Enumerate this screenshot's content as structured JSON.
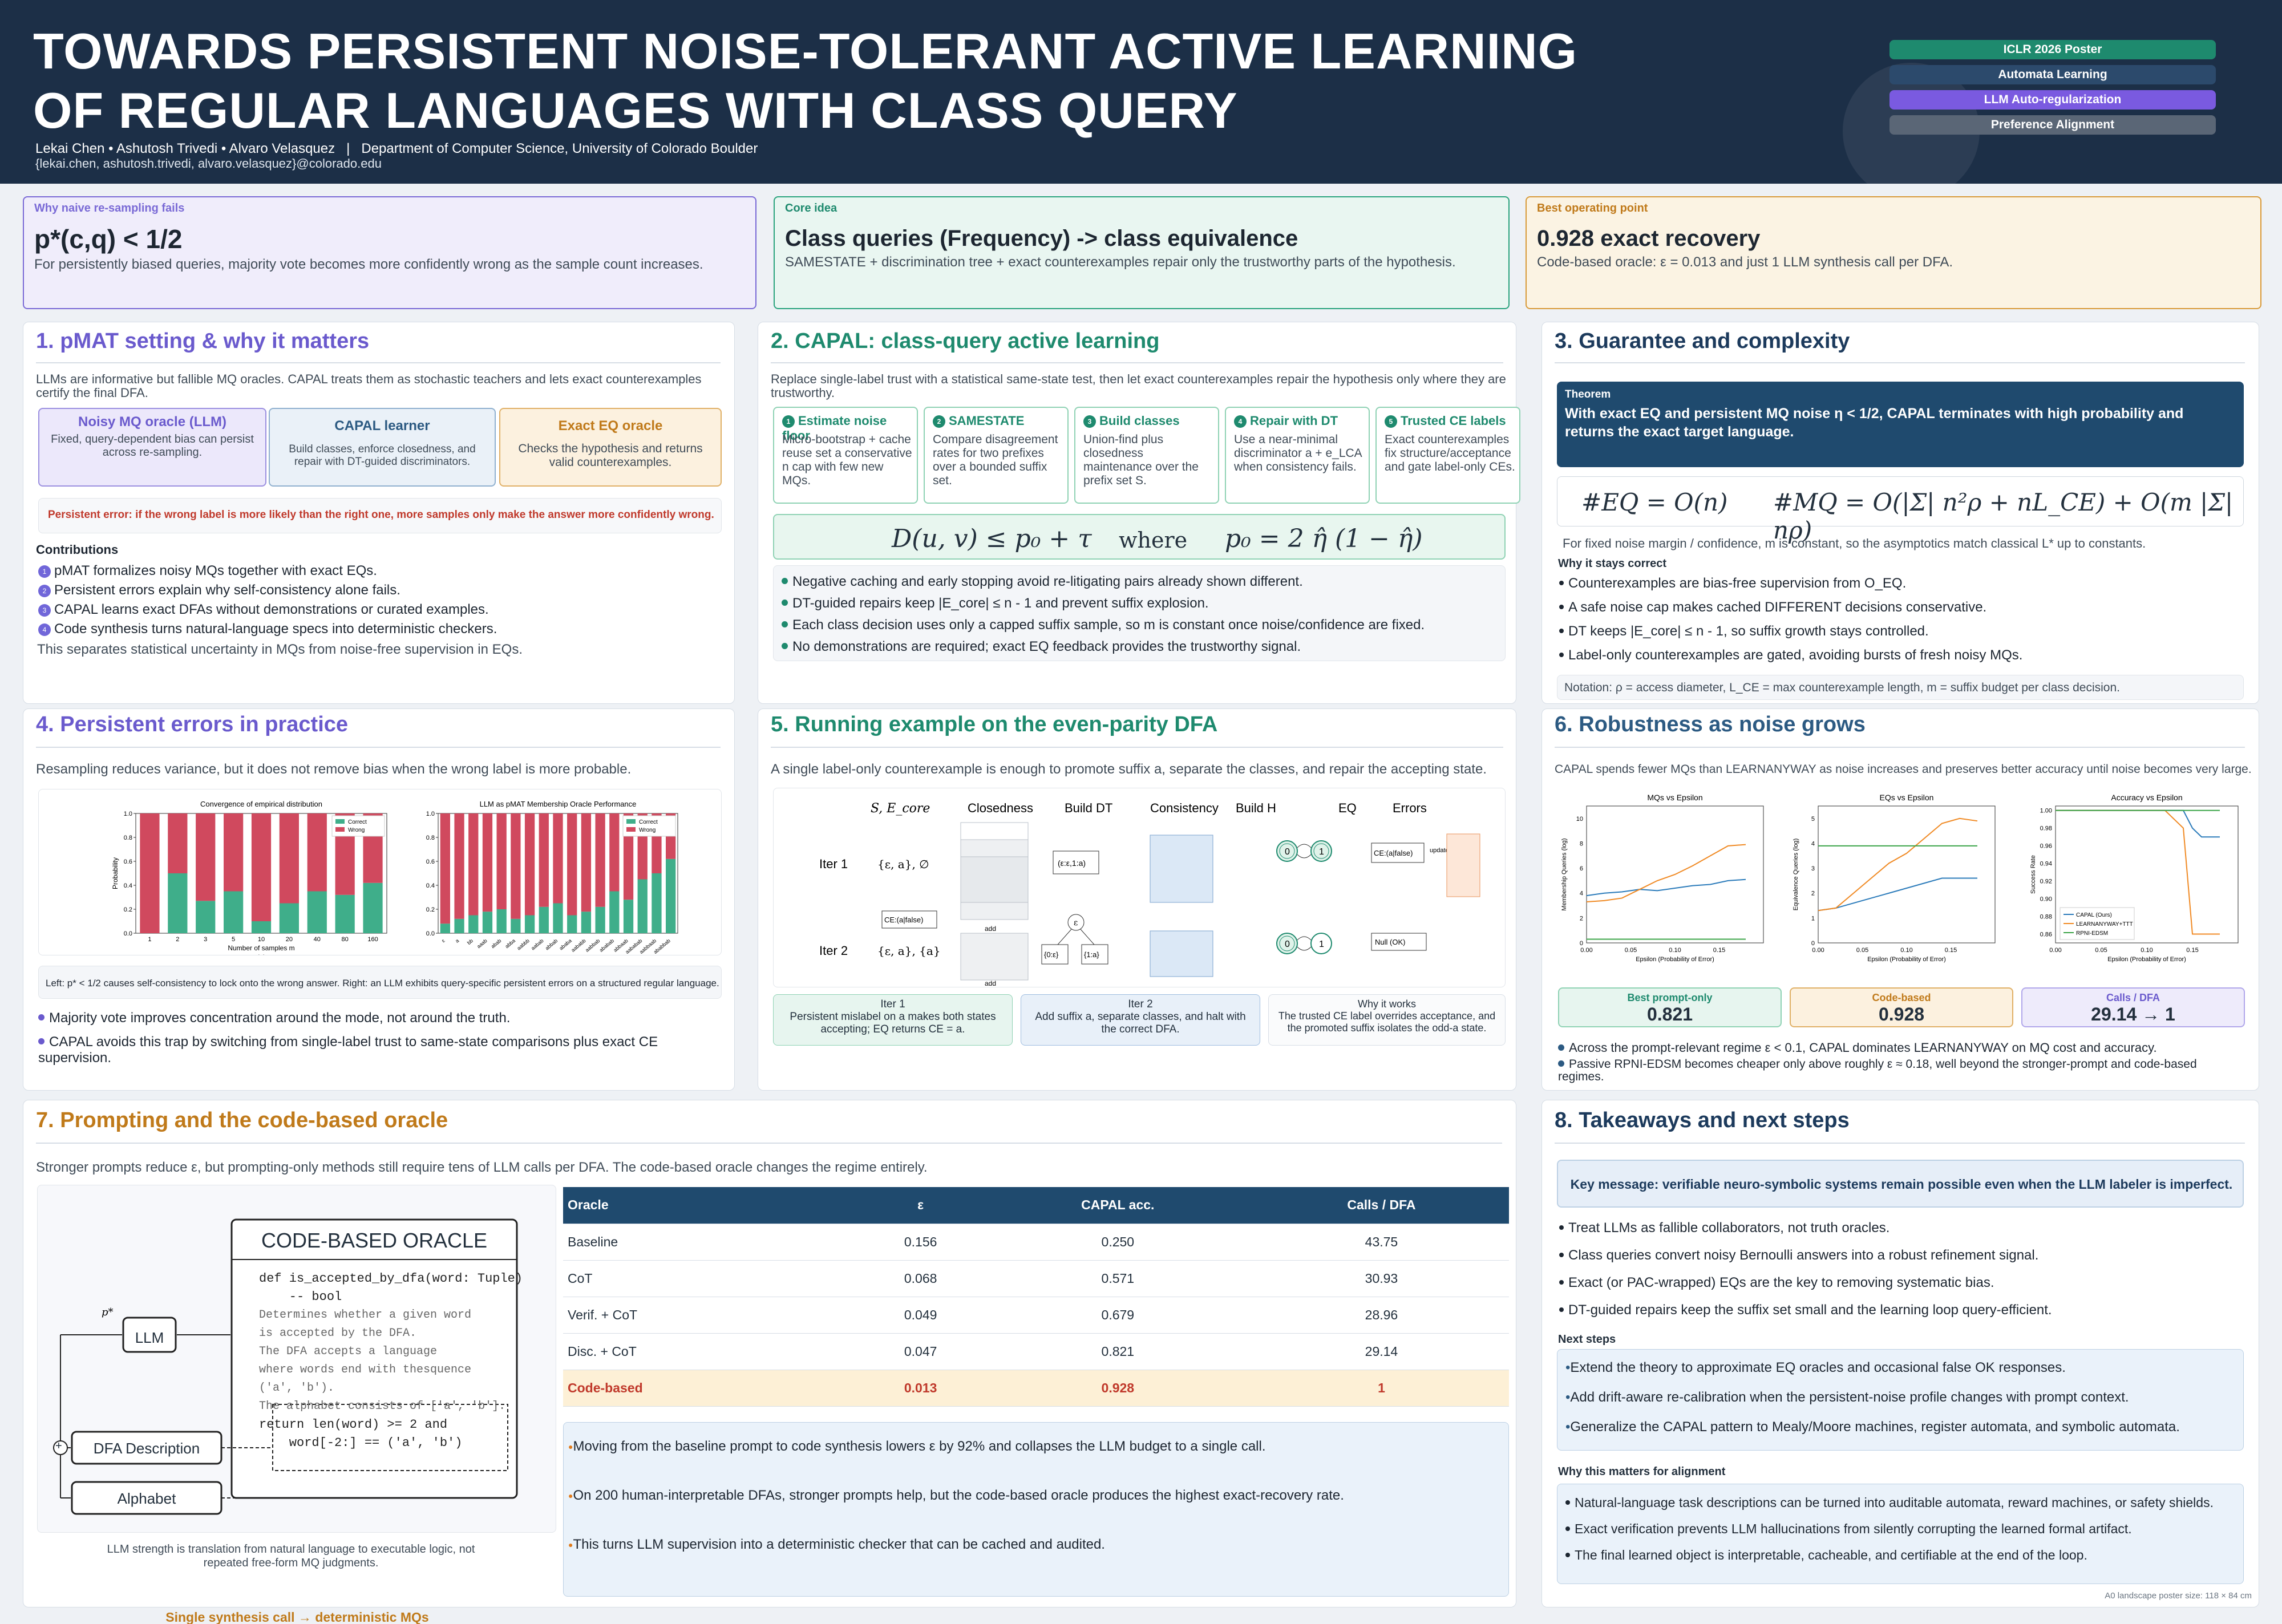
{
  "header": {
    "title": "TOWARDS PERSISTENT NOISE-TOLERANT ACTIVE LEARNING OF REGULAR LANGUAGES WITH CLASS QUERY",
    "authors": "Lekai Chen • Ashutosh Trivedi • Alvaro Velasquez   |   Department of Computer Science, University of Colorado Boulder",
    "emails": "{lekai.chen, ashutosh.trivedi, alvaro.velasquez}@colorado.edu",
    "tags": [
      "ICLR 2026 Poster",
      "Automata Learning",
      "LLM Auto-regularization",
      "Preference Alignment"
    ]
  },
  "colors": {
    "header": "#1c2f47",
    "purple": "#6a5acd",
    "teal": "#1e8a6e",
    "blue": "#2c5a82",
    "orange": "#c07a1a",
    "red": "#c0392b",
    "tag1": "#1e8a6e",
    "tag2": "#2c4a6c",
    "tag3": "#7a5ae0",
    "tag4": "#5a6676"
  },
  "highlights": [
    {
      "label": "Why naive re-sampling fails",
      "title": "p*(c,q) < 1/2",
      "text": "For persistently biased queries, majority vote becomes more confidently wrong as the sample count increases."
    },
    {
      "label": "Core idea",
      "title": "Class queries (Frequency) -> class equivalence",
      "text": "SAMESTATE + discrimination tree + exact counterexamples repair only the trustworthy parts of the hypothesis."
    },
    {
      "label": "Best operating point",
      "title": "0.928 exact recovery",
      "text": "Code-based oracle: ε = 0.013 and just 1 LLM synthesis call per DFA."
    }
  ],
  "s1": {
    "title": "1. pMAT setting & why it matters",
    "intro": "LLMs are informative but fallible MQ oracles. CAPAL treats them as stochastic teachers and lets exact counterexamples certify the final DFA.",
    "flow": [
      {
        "title": "Noisy MQ oracle (LLM)",
        "text": "Fixed, query-dependent bias can persist across re-sampling."
      },
      {
        "title": "CAPAL learner",
        "text": "Build classes, enforce closedness, and repair with DT-guided discriminators."
      },
      {
        "title": "Exact EQ oracle",
        "text": "Checks the hypothesis and returns valid counterexamples."
      }
    ],
    "warn": "Persistent error: if the wrong label is more likely than the right one, more samples only make the answer more confidently wrong.",
    "contrib_title": "Contributions",
    "contribs": [
      "pMAT formalizes noisy MQs together with exact EQs.",
      "Persistent errors explain why self-consistency alone fails.",
      "CAPAL learns exact DFAs without demonstrations or curated examples.",
      "Code synthesis turns natural-language specs into deterministic checkers."
    ],
    "num": [
      "1",
      "2",
      "3",
      "4"
    ],
    "note": "This separates statistical uncertainty in MQs from noise-free supervision in EQs."
  },
  "s2": {
    "title": "2. CAPAL: class-query active learning",
    "intro": "Replace single-label trust with a statistical same-state test, then let exact counterexamples repair the hypothesis only where they are trustworthy.",
    "steps": [
      {
        "n": "1",
        "title": "Estimate noise floor",
        "text": "Micro-bootstrap + cache reuse set a conservative n cap with few new MQs."
      },
      {
        "n": "2",
        "title": "SAMESTATE",
        "text": "Compare disagreement rates for two prefixes over a bounded suffix set."
      },
      {
        "n": "3",
        "title": "Build classes",
        "text": "Union-find plus closedness maintenance over the prefix set S."
      },
      {
        "n": "4",
        "title": "Repair with DT",
        "text": "Use a near-minimal discriminator a + e_LCA when consistency fails."
      },
      {
        "n": "5",
        "title": "Trusted CE labels",
        "text": "Exact counterexamples fix structure/acceptance and gate label-only CEs."
      }
    ],
    "eq_lhs": "D(u, v) ≤ p₀ + τ",
    "eq_where": "where",
    "eq_rhs": "p₀ = 2 η̂ (1 − η̂)",
    "bullets": [
      "Negative caching and early stopping avoid re-litigating pairs already shown different.",
      "DT-guided repairs keep |E_core| ≤ n - 1 and prevent suffix explosion.",
      "Each class decision uses only a capped suffix sample, so m is constant once noise/confidence are fixed.",
      "No demonstrations are required; exact EQ feedback provides the trustworthy signal."
    ]
  },
  "s3": {
    "title": "3. Guarantee and complexity",
    "th_label": "Theorem",
    "th_text": "With exact EQ and persistent MQ noise η < 1/2, CAPAL terminates with high probability and returns the exact target language.",
    "eq1": "#EQ = O(n)",
    "eq2": "#MQ = O(|Σ| n²ρ + nL_CE) + O(m |Σ| nρ)",
    "note": "For fixed noise margin / confidence, m is constant, so the asymptotics match classical L* up to constants.",
    "why": "Why it stays correct",
    "bullets": [
      "Counterexamples are bias-free supervision from O_EQ.",
      "A safe noise cap makes cached DIFFERENT decisions conservative.",
      "DT keeps |E_core| ≤ n - 1, so suffix growth stays controlled.",
      "Label-only counterexamples are gated, avoiding bursts of fresh noisy MQs."
    ],
    "notation": "Notation: ρ = access diameter, L_CE = max counterexample length, m = suffix budget per class decision."
  },
  "s4": {
    "title": "4. Persistent errors in practice",
    "intro": "Resampling reduces variance, but it does not remove bias when the wrong label is more probable.",
    "caption": "Left: p* < 1/2 causes self-consistency to lock onto the wrong answer. Right: an LLM exhibits query-specific persistent errors on a structured regular language.",
    "bullets": [
      "Majority vote improves concentration around the mode, not around the truth.",
      "CAPAL avoids this trap by switching from single-label trust to same-state comparisons plus exact CE supervision."
    ]
  },
  "s5": {
    "title": "5. Running example on the even-parity DFA",
    "intro": "A single label-only counterexample is enough to promote suffix a, separate the classes, and repair the accepting state.",
    "cols": [
      "S, E_core",
      "Closedness",
      "Build DT",
      "Consistency",
      "Build H",
      "EQ",
      "Errors"
    ],
    "rows": [
      "Iter 1",
      "Iter 2"
    ],
    "ce": "CE:(a|false)",
    "nullok": "Null (OK)",
    "add": "add",
    "update": "update",
    "iter": [
      {
        "t": "Iter 1",
        "d": "Persistent mislabel on a makes both states accepting; EQ returns CE = a."
      },
      {
        "t": "Iter 2",
        "d": "Add suffix a, separate classes, and halt with the correct DFA."
      },
      {
        "t": "Why it works",
        "d": "The trusted CE label overrides acceptance, and the promoted suffix isolates the odd-a state."
      }
    ]
  },
  "s6": {
    "title": "6. Robustness as noise grows",
    "intro": "CAPAL spends fewer MQs than LEARNANYWAY as noise increases and preserves better accuracy until noise becomes very large.",
    "stats": [
      {
        "label": "Best prompt-only",
        "value": "0.821"
      },
      {
        "label": "Code-based",
        "value": "0.928"
      },
      {
        "label": "Calls / DFA",
        "value": "29.14 → 1"
      }
    ],
    "bullets": [
      "Across the prompt-relevant regime ε < 0.1, CAPAL dominates LEARNANYWAY on MQ cost and accuracy.",
      "Passive RPNI-EDSM becomes cheaper only above roughly ε ≈ 0.18, well beyond the stronger-prompt and code-based regimes."
    ]
  },
  "s7": {
    "title": "7. Prompting and the code-based oracle",
    "intro": "Stronger prompts reduce ε, but prompting-only methods still require tens of LLM calls per DFA. The code-based oracle changes the regime entirely.",
    "diag": {
      "llm": "LLM",
      "dfa": "DFA Description",
      "alpha": "Alphabet",
      "plus": "+",
      "p": "p*",
      "oracle_title": "CODE-BASED ORACLE",
      "code": [
        "def is_accepted_by_dfa(word: Tuple)",
        "    -- bool",
        "",
        "Determines whether a given word",
        "is accepted by the DFA.",
        "The DFA accepts a language",
        "where words end with thesquence",
        "('a', 'b').",
        "The alphabet consists of ['a', 'b'].",
        "return len(word) >= 2 and",
        "    word[-2:] == ('a', 'b')"
      ]
    },
    "cap_title": "Single synthesis call → deterministic MQs",
    "cap_text": "LLM strength is translation from natural language to executable logic, not repeated free-form MQ judgments.",
    "table": {
      "headers": [
        "Oracle",
        "ε",
        "CAPAL acc.",
        "Calls / DFA"
      ],
      "rows": [
        [
          "Baseline",
          "0.156",
          "0.250",
          "43.75"
        ],
        [
          "CoT",
          "0.068",
          "0.571",
          "30.93"
        ],
        [
          "Verif. + CoT",
          "0.049",
          "0.679",
          "28.96"
        ],
        [
          "Disc. + CoT",
          "0.047",
          "0.821",
          "29.14"
        ],
        [
          "Code-based",
          "0.013",
          "0.928",
          "1"
        ]
      ]
    },
    "bullets": [
      "Moving from the baseline prompt to code synthesis lowers ε by 92% and collapses the LLM budget to a single call.",
      "On 200 human-interpretable DFAs, stronger prompts help, but the code-based oracle produces the highest exact-recovery rate.",
      "This turns LLM supervision into a deterministic checker that can be cached and audited."
    ]
  },
  "s8": {
    "title": "8. Takeaways and next steps",
    "key": "Key message: verifiable neuro-symbolic systems remain possible even when the LLM labeler is imperfect.",
    "bullets": [
      "Treat LLMs as fallible collaborators, not truth oracles.",
      "Class queries convert noisy Bernoulli answers into a robust refinement signal.",
      "Exact (or PAC-wrapped) EQs are the key to removing systematic bias.",
      "DT-guided repairs keep the suffix set small and the learning loop query-efficient."
    ],
    "next_title": "Next steps",
    "next": [
      "Extend the theory to approximate EQ oracles and occasional false OK responses.",
      "Add drift-aware re-calibration when the persistent-noise profile changes with prompt context.",
      "Generalize the CAPAL pattern to Mealy/Moore machines, register automata, and symbolic automata."
    ],
    "why_title": "Why this matters for alignment",
    "why": [
      "Natural-language task descriptions can be turned into auditable automata, reward machines, or safety shields.",
      "Exact verification prevents LLM hallucinations from silently corrupting the learned formal artifact.",
      "The final learned object is interpretable, cacheable, and certifiable at the end of the loop."
    ],
    "footer": "A0 landscape poster size: 118 × 84 cm"
  },
  "chart_data": [
    {
      "type": "bar",
      "title": "Convergence of empirical distribution",
      "xlabel": "Number of samples m",
      "ylabel": "Probability",
      "caption": "(a)",
      "categories": [
        "1",
        "2",
        "3",
        "5",
        "10",
        "20",
        "40",
        "80",
        "160"
      ],
      "ylim": [
        0,
        1.0
      ],
      "yticks": [
        "0.0",
        "0.2",
        "0.4",
        "0.6",
        "0.8",
        "1.0"
      ],
      "legend": [
        "Correct",
        "Wrong"
      ],
      "series": [
        {
          "name": "Correct",
          "values": [
            0.0,
            0.5,
            0.27,
            0.35,
            0.1,
            0.25,
            0.35,
            0.32,
            0.42
          ]
        },
        {
          "name": "Wrong",
          "values": [
            1.0,
            0.5,
            0.73,
            0.65,
            0.9,
            0.75,
            0.65,
            0.68,
            0.58
          ]
        }
      ]
    },
    {
      "type": "bar",
      "title": "LLM as pMAT Membership Oracle Performance",
      "caption": "(b)",
      "categories": [
        "ε",
        "a",
        "bb",
        "aaab",
        "abab",
        "abba",
        "aabbb",
        "aabab",
        "abbab",
        "ababa",
        "aababb",
        "aabbab",
        "ababab",
        "abbaab",
        "aababab",
        "aabbaab",
        "ababbab"
      ],
      "ylim": [
        0,
        1.0
      ],
      "yticks": [
        "0.0",
        "0.2",
        "0.4",
        "0.6",
        "0.8",
        "1.0"
      ],
      "legend": [
        "Correct",
        "Wrong"
      ],
      "series": [
        {
          "name": "Correct",
          "values": [
            0.08,
            0.12,
            0.15,
            0.18,
            0.2,
            0.12,
            0.15,
            0.22,
            0.25,
            0.15,
            0.18,
            0.22,
            0.35,
            0.28,
            0.45,
            0.5,
            0.62
          ]
        },
        {
          "name": "Wrong",
          "values": [
            0.92,
            0.88,
            0.85,
            0.82,
            0.8,
            0.88,
            0.85,
            0.78,
            0.75,
            0.85,
            0.82,
            0.78,
            0.65,
            0.72,
            0.55,
            0.5,
            0.38
          ]
        }
      ]
    },
    {
      "type": "line",
      "title": "MQs vs Epsilon",
      "xlabel": "Epsilon (Probability of Error)",
      "ylabel": "Membership Queries (log)",
      "xticks": [
        "0.00",
        "0.05",
        "0.10",
        "0.15"
      ],
      "yticks": [
        "0",
        "2",
        "4",
        "6",
        "8",
        "10"
      ],
      "x": [
        0.0,
        0.02,
        0.04,
        0.06,
        0.08,
        0.1,
        0.12,
        0.14,
        0.16,
        0.18
      ],
      "series": [
        {
          "name": "CAPAL (Ours)",
          "values": [
            3.8,
            4.0,
            4.1,
            4.3,
            4.2,
            4.4,
            4.6,
            4.7,
            5.0,
            5.1
          ]
        },
        {
          "name": "LEARNANYWAY+TTT",
          "values": [
            3.3,
            3.4,
            3.6,
            4.3,
            5.0,
            5.5,
            6.2,
            7.0,
            7.8,
            7.9
          ]
        },
        {
          "name": "RPNI-EDSM",
          "values": [
            0.3,
            0.3,
            0.3,
            0.3,
            0.3,
            0.3,
            0.3,
            0.3,
            0.3,
            0.3
          ]
        }
      ]
    },
    {
      "type": "line",
      "title": "EQs vs Epsilon",
      "xlabel": "Epsilon (Probability of Error)",
      "ylabel": "Equivalence Queries (log)",
      "xticks": [
        "0.00",
        "0.05",
        "0.10",
        "0.15"
      ],
      "yticks": [
        "0",
        "1",
        "2",
        "3",
        "4",
        "5"
      ],
      "x": [
        0.0,
        0.02,
        0.04,
        0.06,
        0.08,
        0.1,
        0.12,
        0.14,
        0.16,
        0.18
      ],
      "series": [
        {
          "name": "CAPAL (Ours)",
          "values": [
            1.3,
            1.4,
            1.6,
            1.8,
            2.0,
            2.2,
            2.4,
            2.6,
            2.6,
            2.6
          ]
        },
        {
          "name": "LEARNANYWAY+TTT",
          "values": [
            1.3,
            1.4,
            2.0,
            2.6,
            3.2,
            3.6,
            4.2,
            4.8,
            5.0,
            4.9
          ]
        },
        {
          "name": "RPNI-EDSM",
          "values": [
            3.9,
            3.9,
            3.9,
            3.9,
            3.9,
            3.9,
            3.9,
            3.9,
            3.9,
            3.9
          ]
        }
      ]
    },
    {
      "type": "line",
      "title": "Accuracy vs Epsilon",
      "xlabel": "Epsilon (Probability of Error)",
      "ylabel": "Success Rate",
      "xticks": [
        "0.00",
        "0.05",
        "0.10",
        "0.15"
      ],
      "yticks": [
        "0.86",
        "0.88",
        "0.90",
        "0.92",
        "0.94",
        "0.96",
        "0.98",
        "1.00"
      ],
      "x": [
        0.0,
        0.02,
        0.04,
        0.06,
        0.08,
        0.1,
        0.12,
        0.14,
        0.15,
        0.16,
        0.18
      ],
      "legend_pos": "bottom-left",
      "series": [
        {
          "name": "CAPAL (Ours)",
          "values": [
            1.0,
            1.0,
            1.0,
            1.0,
            1.0,
            1.0,
            1.0,
            1.0,
            0.98,
            0.97,
            0.97
          ]
        },
        {
          "name": "LEARNANYWAY+TTT",
          "values": [
            1.0,
            1.0,
            1.0,
            1.0,
            1.0,
            1.0,
            1.0,
            0.98,
            0.86,
            0.86,
            0.86
          ]
        },
        {
          "name": "RPNI-EDSM",
          "values": [
            1.0,
            1.0,
            1.0,
            1.0,
            1.0,
            1.0,
            1.0,
            1.0,
            1.0,
            1.0,
            1.0
          ]
        }
      ]
    }
  ]
}
